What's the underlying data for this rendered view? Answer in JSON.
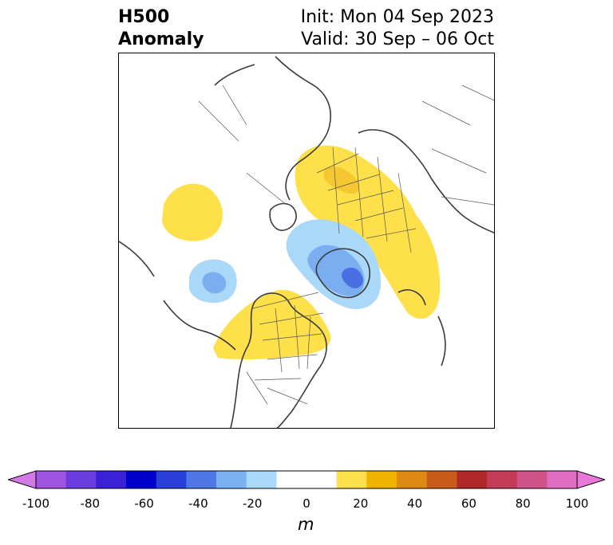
{
  "header": {
    "title_line1": "H500",
    "title_line2": "Anomaly",
    "init_text": "Init: Mon 04 Sep 2023",
    "valid_text": "Valid: 30 Sep – 06 Oct"
  },
  "map": {
    "projection": "north-polar-stereographic",
    "features": [
      "coastlines",
      "country-borders",
      "state-province-borders"
    ],
    "anomaly_regions": [
      {
        "name": "positive-anomaly-scandinavia-russia",
        "level_m": 20,
        "color": "#f5ce3a"
      },
      {
        "name": "positive-anomaly-north-atlantic",
        "level_m": 10,
        "color": "#fde04a"
      },
      {
        "name": "positive-anomaly-central-canada",
        "level_m": 10,
        "color": "#fde04a"
      },
      {
        "name": "positive-anomaly-east-asia",
        "level_m": 10,
        "color": "#fde04a"
      },
      {
        "name": "negative-anomaly-greenland",
        "level_m": -30,
        "color": "#4a6fe0"
      },
      {
        "name": "negative-anomaly-north-pacific",
        "level_m": -20,
        "color": "#7aaef0"
      }
    ]
  },
  "colorbar": {
    "unit": "m",
    "tick_labels": [
      "-100",
      "-80",
      "-60",
      "-40",
      "-20",
      "0",
      "20",
      "40",
      "60",
      "80",
      "100"
    ],
    "tick_values": [
      -100,
      -80,
      -60,
      -40,
      -20,
      0,
      20,
      40,
      60,
      80,
      100
    ],
    "segment_colors": [
      "#9e54e0",
      "#6b3de0",
      "#3a20d6",
      "#0000cc",
      "#2a3fd8",
      "#4f78e6",
      "#7bb0f2",
      "#aad8f8",
      "#ffffff",
      "#ffffff",
      "#fbe04c",
      "#f0b400",
      "#de8a12",
      "#c85a1a",
      "#b0282a",
      "#c23c58",
      "#d05488",
      "#e06ec0"
    ],
    "low_extend_color": "#d47ae8",
    "high_extend_color": "#e878d8"
  }
}
